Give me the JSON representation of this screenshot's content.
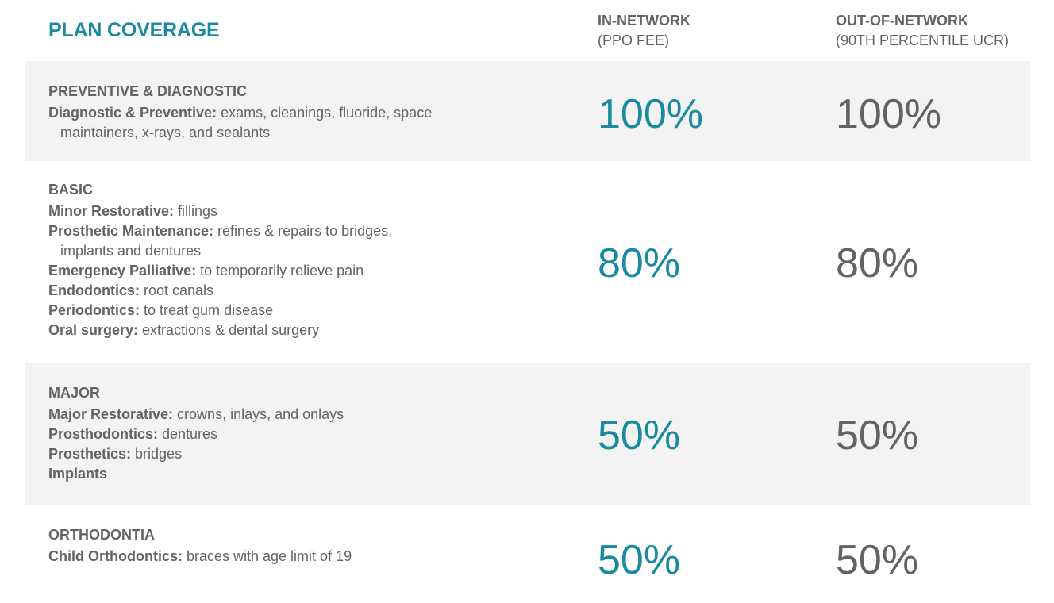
{
  "title": "PLAN COVERAGE",
  "columns": {
    "in_network": {
      "label": "IN-NETWORK",
      "sub": "(PPO FEE)"
    },
    "out_network": {
      "label": "OUT-OF-NETWORK",
      "sub": "(90TH PERCENTILE UCR)"
    }
  },
  "colors": {
    "accent": "#1a8aa0",
    "text": "#636363",
    "band": "#f3f3f3"
  },
  "rows": [
    {
      "category": "PREVENTIVE & DIAGNOSTIC",
      "in": "100%",
      "out": "100%",
      "items": [
        {
          "label": "Diagnostic & Preventive:",
          "text": " exams, cleanings, fluoride, space maintainers, x-rays, and sealants"
        }
      ]
    },
    {
      "category": "BASIC",
      "in": "80%",
      "out": "80%",
      "items": [
        {
          "label": "Minor Restorative:",
          "text": " fillings"
        },
        {
          "label": "Prosthetic Maintenance:",
          "text": " refines & repairs to bridges, implants and dentures"
        },
        {
          "label": "Emergency Palliative:",
          "text": " to temporarily relieve pain"
        },
        {
          "label": "Endodontics:",
          "text": " root canals"
        },
        {
          "label": "Periodontics:",
          "text": " to treat gum disease"
        },
        {
          "label": "Oral surgery:",
          "text": " extractions & dental surgery"
        }
      ]
    },
    {
      "category": "MAJOR",
      "in": "50%",
      "out": "50%",
      "items": [
        {
          "label": "Major Restorative:",
          "text": " crowns, inlays, and onlays"
        },
        {
          "label": "Prosthodontics:",
          "text": " dentures"
        },
        {
          "label": "Prosthetics:",
          "text": " bridges"
        },
        {
          "label": "Implants",
          "text": ""
        }
      ]
    },
    {
      "category": "ORTHODONTIA",
      "in": "50%",
      "out": "50%",
      "items": [
        {
          "label": "Child Orthodontics:",
          "text": " braces with age limit of 19"
        }
      ]
    }
  ]
}
